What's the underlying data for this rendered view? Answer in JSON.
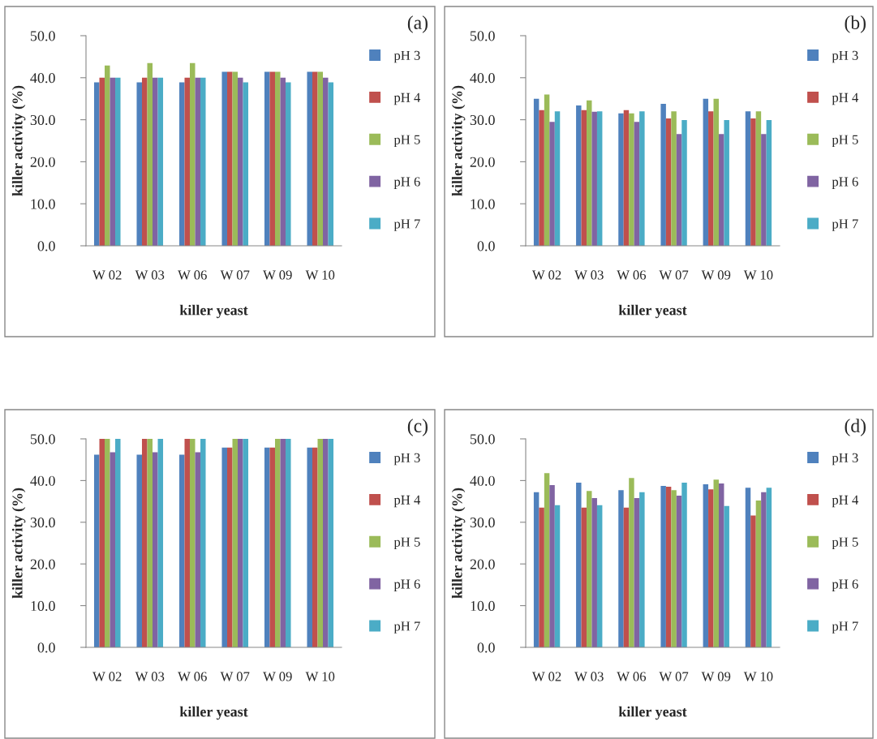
{
  "chart_data": [
    {
      "type": "bar",
      "categories": [
        "W 02",
        "W 03",
        "W 06",
        "W 07",
        "W 09",
        "W 10"
      ],
      "xlabel": "killer yeast",
      "ylabel": "killer activity (%)",
      "annotations": [
        "(a)"
      ],
      "ylim": [
        0,
        50
      ],
      "yticks": [
        {
          "value": 0,
          "label": "0.0"
        },
        {
          "value": 10,
          "label": "10.0"
        },
        {
          "value": 20,
          "label": "20.0"
        },
        {
          "value": 30,
          "label": "30.0"
        },
        {
          "value": 40,
          "label": "40.0"
        },
        {
          "value": 50,
          "label": "50.0"
        }
      ],
      "legend": "right",
      "grid": false,
      "series": [
        {
          "name": "pH 3",
          "color": "#4f81bd",
          "values": [
            38.9,
            38.9,
            38.9,
            41.4,
            41.4,
            41.4
          ]
        },
        {
          "name": "pH 4",
          "color": "#c0504d",
          "values": [
            40.0,
            40.0,
            40.0,
            41.4,
            41.4,
            41.4
          ]
        },
        {
          "name": "pH 5",
          "color": "#9bbb59",
          "values": [
            42.9,
            43.5,
            43.5,
            41.4,
            41.4,
            41.4
          ]
        },
        {
          "name": "pH 6",
          "color": "#8064a2",
          "values": [
            40.0,
            40.0,
            40.0,
            40.0,
            40.0,
            40.0
          ]
        },
        {
          "name": "pH 7",
          "color": "#4bacc6",
          "values": [
            40.0,
            40.0,
            40.0,
            38.9,
            38.9,
            38.9
          ]
        }
      ]
    },
    {
      "type": "bar",
      "categories": [
        "W 02",
        "W 03",
        "W 06",
        "W 07",
        "W 09",
        "W 10"
      ],
      "xlabel": "killer yeast",
      "ylabel": "killer activity (%)",
      "annotations": [
        "(b)"
      ],
      "ylim": [
        0,
        50
      ],
      "yticks": [
        {
          "value": 0,
          "label": "0.0"
        },
        {
          "value": 10,
          "label": "10.0"
        },
        {
          "value": 20,
          "label": "20.0"
        },
        {
          "value": 30,
          "label": "30.0"
        },
        {
          "value": 40,
          "label": "40.0"
        },
        {
          "value": 50,
          "label": "50.0"
        }
      ],
      "legend": "right",
      "grid": false,
      "series": [
        {
          "name": "pH 3",
          "color": "#4f81bd",
          "values": [
            35.0,
            33.4,
            31.5,
            33.8,
            35.0,
            32.0
          ]
        },
        {
          "name": "pH 4",
          "color": "#c0504d",
          "values": [
            32.3,
            32.3,
            32.3,
            30.3,
            32.0,
            30.3
          ]
        },
        {
          "name": "pH 5",
          "color": "#9bbb59",
          "values": [
            36.0,
            34.6,
            31.5,
            32.0,
            35.0,
            32.0
          ]
        },
        {
          "name": "pH 6",
          "color": "#8064a2",
          "values": [
            29.5,
            31.9,
            29.5,
            26.6,
            26.6,
            26.6
          ]
        },
        {
          "name": "pH 7",
          "color": "#4bacc6",
          "values": [
            32.0,
            32.0,
            32.0,
            29.9,
            29.9,
            29.9
          ]
        }
      ]
    },
    {
      "type": "bar",
      "categories": [
        "W 02",
        "W 03",
        "W 06",
        "W 07",
        "W 09",
        "W 10"
      ],
      "xlabel": "killer yeast",
      "ylabel": "killer activity (%)",
      "annotations": [
        "(c)"
      ],
      "ylim": [
        0,
        50
      ],
      "yticks": [
        {
          "value": 0,
          "label": "0.0"
        },
        {
          "value": 10,
          "label": "10.0"
        },
        {
          "value": 20,
          "label": "20.0"
        },
        {
          "value": 30,
          "label": "30.0"
        },
        {
          "value": 40,
          "label": "40.0"
        },
        {
          "value": 50,
          "label": "50.0"
        }
      ],
      "legend": "right",
      "grid": false,
      "series": [
        {
          "name": "pH 3",
          "color": "#4f81bd",
          "values": [
            46.2,
            46.2,
            46.2,
            47.9,
            47.9,
            47.9
          ]
        },
        {
          "name": "pH 4",
          "color": "#c0504d",
          "values": [
            50.0,
            50.0,
            50.0,
            47.9,
            47.9,
            47.9
          ]
        },
        {
          "name": "pH 5",
          "color": "#9bbb59",
          "values": [
            50.0,
            50.0,
            50.0,
            50.0,
            50.0,
            50.0
          ]
        },
        {
          "name": "pH 6",
          "color": "#8064a2",
          "values": [
            46.8,
            46.8,
            46.8,
            50.0,
            50.0,
            50.0
          ]
        },
        {
          "name": "pH 7",
          "color": "#4bacc6",
          "values": [
            50.0,
            50.0,
            50.0,
            50.0,
            50.0,
            50.0
          ]
        }
      ]
    },
    {
      "type": "bar",
      "categories": [
        "W 02",
        "W 03",
        "W 06",
        "W 07",
        "W 09",
        "W 10"
      ],
      "xlabel": "killer yeast",
      "ylabel": "killer activity (%)",
      "annotations": [
        "(d)"
      ],
      "ylim": [
        0,
        50
      ],
      "yticks": [
        {
          "value": 0,
          "label": "0.0"
        },
        {
          "value": 10,
          "label": "10.0"
        },
        {
          "value": 20,
          "label": "20.0"
        },
        {
          "value": 30,
          "label": "30.0"
        },
        {
          "value": 40,
          "label": "40.0"
        },
        {
          "value": 50,
          "label": "50.0"
        }
      ],
      "legend": "right",
      "grid": false,
      "series": [
        {
          "name": "pH 3",
          "color": "#4f81bd",
          "values": [
            37.2,
            39.5,
            37.7,
            38.7,
            39.1,
            38.3
          ]
        },
        {
          "name": "pH 4",
          "color": "#c0504d",
          "values": [
            33.5,
            33.5,
            33.5,
            38.5,
            37.9,
            31.6
          ]
        },
        {
          "name": "pH 5",
          "color": "#9bbb59",
          "values": [
            41.8,
            37.5,
            40.6,
            37.7,
            40.2,
            35.2
          ]
        },
        {
          "name": "pH 6",
          "color": "#8064a2",
          "values": [
            38.9,
            35.8,
            35.8,
            36.4,
            39.3,
            37.2
          ]
        },
        {
          "name": "pH 7",
          "color": "#4bacc6",
          "values": [
            34.1,
            34.1,
            37.2,
            39.5,
            33.9,
            38.3
          ]
        }
      ]
    }
  ]
}
